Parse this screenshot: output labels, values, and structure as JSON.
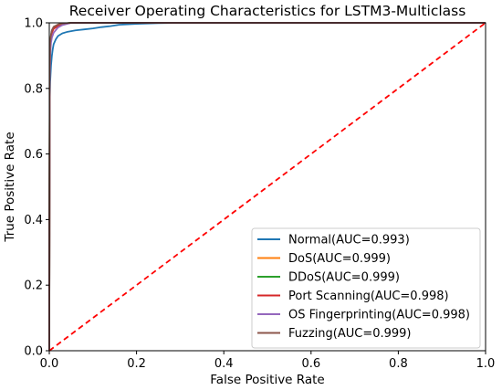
{
  "chart_data": {
    "type": "line",
    "title": "Receiver Operating Characteristics for LSTM3-Multiclass",
    "xlabel": "False Positive Rate",
    "ylabel": "True Positive Rate",
    "xlim": [
      0,
      1
    ],
    "ylim": [
      0,
      1
    ],
    "xticks": [
      "0.0",
      "0.2",
      "0.4",
      "0.6",
      "0.8",
      "1.0"
    ],
    "yticks": [
      "0.0",
      "0.2",
      "0.4",
      "0.6",
      "0.8",
      "1.0"
    ],
    "grid": false,
    "legend_position": "lower-right",
    "series": [
      {
        "name": "Normal(AUC=0.993)",
        "color": "#1f77b4",
        "x": [
          0,
          0.001,
          0.002,
          0.004,
          0.006,
          0.008,
          0.01,
          0.015,
          0.02,
          0.03,
          0.04,
          0.06,
          0.08,
          0.1,
          0.12,
          0.14,
          0.16,
          0.2,
          0.25,
          0.3,
          0.4,
          1.0
        ],
        "y": [
          0,
          0.76,
          0.82,
          0.87,
          0.9,
          0.92,
          0.935,
          0.95,
          0.96,
          0.968,
          0.972,
          0.977,
          0.98,
          0.983,
          0.987,
          0.99,
          0.994,
          0.997,
          0.999,
          1.0,
          1.0,
          1.0
        ]
      },
      {
        "name": "DoS(AUC=0.999)",
        "color": "#ff7f0e",
        "x": [
          0,
          0.001,
          0.002,
          0.004,
          0.006,
          0.01,
          0.02,
          0.03,
          0.05,
          1.0
        ],
        "y": [
          0,
          0.85,
          0.93,
          0.96,
          0.975,
          0.985,
          0.993,
          0.997,
          1.0,
          1.0
        ]
      },
      {
        "name": "DDoS(AUC=0.999)",
        "color": "#2ca02c",
        "x": [
          0,
          0.001,
          0.002,
          0.004,
          0.006,
          0.01,
          0.02,
          0.03,
          0.05,
          1.0
        ],
        "y": [
          0,
          0.86,
          0.935,
          0.962,
          0.976,
          0.986,
          0.994,
          0.998,
          1.0,
          1.0
        ]
      },
      {
        "name": "Port Scanning(AUC=0.998)",
        "color": "#d62728",
        "x": [
          0,
          0.001,
          0.002,
          0.004,
          0.006,
          0.01,
          0.02,
          0.03,
          0.05,
          1.0
        ],
        "y": [
          0,
          0.84,
          0.92,
          0.955,
          0.97,
          0.982,
          0.99,
          0.995,
          1.0,
          1.0
        ]
      },
      {
        "name": "OS Fingerprinting(AUC=0.998)",
        "color": "#9467bd",
        "x": [
          0,
          0.001,
          0.002,
          0.004,
          0.006,
          0.01,
          0.015,
          0.02,
          0.03,
          0.05,
          1.0
        ],
        "y": [
          0,
          0.8,
          0.9,
          0.94,
          0.955,
          0.97,
          0.978,
          0.986,
          0.993,
          1.0,
          1.0
        ]
      },
      {
        "name": "Fuzzing(AUC=0.999)",
        "color": "#8c564b",
        "x": [
          0,
          0.001,
          0.002,
          0.004,
          0.006,
          0.01,
          0.02,
          0.03,
          0.05,
          1.0
        ],
        "y": [
          0,
          0.87,
          0.94,
          0.965,
          0.978,
          0.988,
          0.995,
          0.998,
          1.0,
          1.0
        ]
      }
    ],
    "reference_line": {
      "x": [
        0,
        1
      ],
      "y": [
        0,
        1
      ],
      "color": "#ff0000",
      "style": "dashed"
    }
  }
}
